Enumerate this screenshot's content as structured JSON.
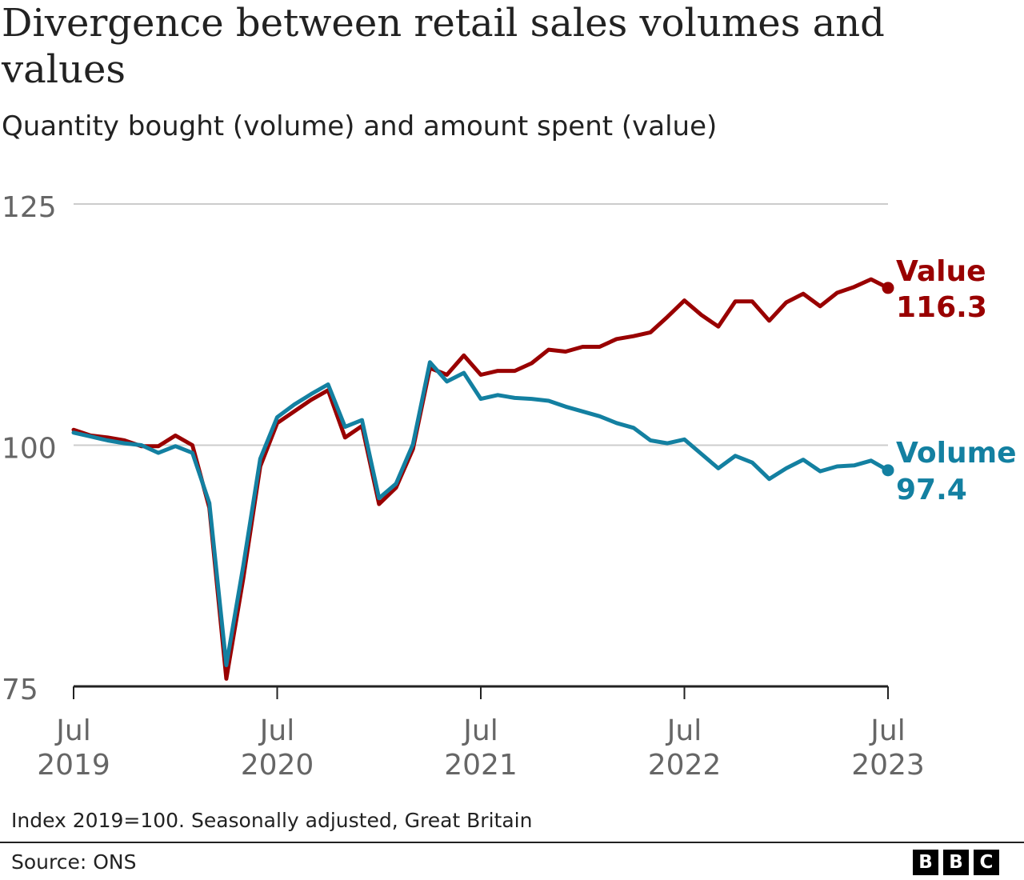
{
  "header": {
    "title": "Divergence between retail sales volumes and values",
    "subtitle": "Quantity bought (volume) and amount spent (value)"
  },
  "footer": {
    "note": "Index 2019=100. Seasonally adjusted, Great Britain",
    "source": "Source: ONS",
    "logo_letters": [
      "B",
      "B",
      "C"
    ]
  },
  "colors": {
    "value": "#990000",
    "volume": "#1380A1",
    "grid": "#cccccc",
    "axis": "#222222",
    "tick_text": "#666666"
  },
  "chart_data": {
    "type": "line",
    "title": "Divergence between retail sales volumes and values",
    "subtitle": "Quantity bought (volume) and amount spent (value)",
    "x_start": "2019-07",
    "x_end": "2023-07",
    "x_ticks": [
      {
        "month": "2019-07",
        "label_month": "Jul",
        "label_year": "2019"
      },
      {
        "month": "2020-07",
        "label_month": "Jul",
        "label_year": "2020"
      },
      {
        "month": "2021-07",
        "label_month": "Jul",
        "label_year": "2021"
      },
      {
        "month": "2022-07",
        "label_month": "Jul",
        "label_year": "2022"
      },
      {
        "month": "2023-07",
        "label_month": "Jul",
        "label_year": "2023"
      }
    ],
    "ylim": [
      75,
      125
    ],
    "y_ticks": [
      75,
      100,
      125
    ],
    "grid": true,
    "x": [
      "2019-07",
      "2019-08",
      "2019-09",
      "2019-10",
      "2019-11",
      "2019-12",
      "2020-01",
      "2020-02",
      "2020-03",
      "2020-04",
      "2020-05",
      "2020-06",
      "2020-07",
      "2020-08",
      "2020-09",
      "2020-10",
      "2020-11",
      "2020-12",
      "2021-01",
      "2021-02",
      "2021-03",
      "2021-04",
      "2021-05",
      "2021-06",
      "2021-07",
      "2021-08",
      "2021-09",
      "2021-10",
      "2021-11",
      "2021-12",
      "2022-01",
      "2022-02",
      "2022-03",
      "2022-04",
      "2022-05",
      "2022-06",
      "2022-07",
      "2022-08",
      "2022-09",
      "2022-10",
      "2022-11",
      "2022-12",
      "2023-01",
      "2023-02",
      "2023-03",
      "2023-04",
      "2023-05",
      "2023-06",
      "2023-07"
    ],
    "series": [
      {
        "name": "Value",
        "end_label": "116.3",
        "values": [
          101.6,
          101.0,
          100.8,
          100.5,
          99.9,
          99.9,
          101.0,
          100.0,
          93.5,
          75.8,
          86.2,
          97.8,
          102.3,
          103.5,
          104.7,
          105.7,
          100.8,
          102.0,
          93.9,
          95.6,
          99.6,
          108.0,
          107.3,
          109.3,
          107.3,
          107.7,
          107.7,
          108.5,
          109.9,
          109.7,
          110.2,
          110.2,
          111.0,
          111.3,
          111.7,
          113.3,
          115.0,
          113.5,
          112.3,
          114.9,
          114.9,
          112.9,
          114.8,
          115.7,
          114.4,
          115.8,
          116.4,
          117.2,
          116.3
        ]
      },
      {
        "name": "Volume",
        "end_label": "97.4",
        "values": [
          101.3,
          100.9,
          100.5,
          100.2,
          100.0,
          99.2,
          99.9,
          99.2,
          94.0,
          77.2,
          87.5,
          98.6,
          102.9,
          104.2,
          105.3,
          106.3,
          101.9,
          102.6,
          94.5,
          96.0,
          100.1,
          108.6,
          106.6,
          107.5,
          104.8,
          105.2,
          104.9,
          104.8,
          104.6,
          104.0,
          103.5,
          103.0,
          102.3,
          101.8,
          100.5,
          100.2,
          100.6,
          99.1,
          97.6,
          98.9,
          98.2,
          96.5,
          97.6,
          98.5,
          97.3,
          97.8,
          97.9,
          98.4,
          97.4
        ]
      }
    ]
  }
}
